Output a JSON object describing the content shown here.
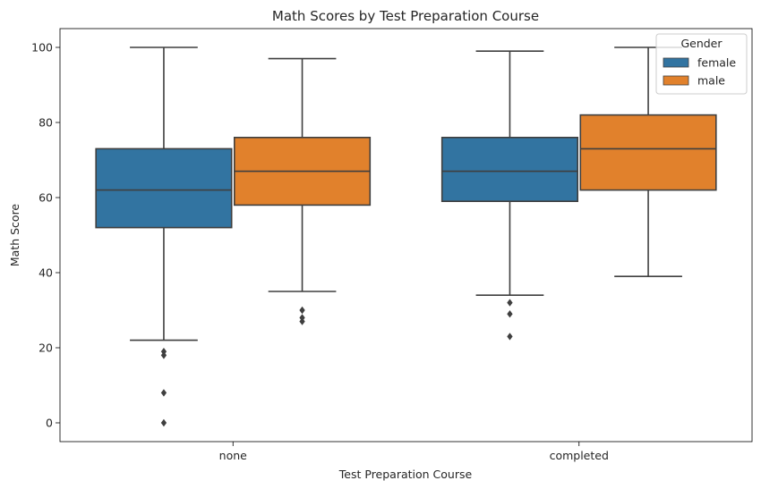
{
  "chart_data": {
    "type": "boxplot",
    "title": "Math Scores by Test Preparation Course",
    "xlabel": "Test Preparation Course",
    "ylabel": "Math Score",
    "ylim": [
      -5,
      105
    ],
    "yticks": [
      0,
      20,
      40,
      60,
      80,
      100
    ],
    "categories": [
      "none",
      "completed"
    ],
    "legend": {
      "title": "Gender",
      "placement": "top-right"
    },
    "grid": false,
    "series": [
      {
        "name": "female",
        "color": "#3274a1",
        "boxes": [
          {
            "category": "none",
            "whisker_low": 22,
            "q1": 52,
            "median": 62,
            "q3": 73,
            "whisker_high": 100,
            "outliers": [
              19,
              18,
              8,
              0
            ]
          },
          {
            "category": "completed",
            "whisker_low": 34,
            "q1": 59,
            "median": 67,
            "q3": 76,
            "whisker_high": 99,
            "outliers": [
              32,
              29,
              23
            ]
          }
        ]
      },
      {
        "name": "male",
        "color": "#e1812c",
        "boxes": [
          {
            "category": "none",
            "whisker_low": 35,
            "q1": 58,
            "median": 67,
            "q3": 76,
            "whisker_high": 97,
            "outliers": [
              30,
              28,
              27
            ]
          },
          {
            "category": "completed",
            "whisker_low": 39,
            "q1": 62,
            "median": 73,
            "q3": 82,
            "whisker_high": 100,
            "outliers": []
          }
        ]
      }
    ]
  }
}
